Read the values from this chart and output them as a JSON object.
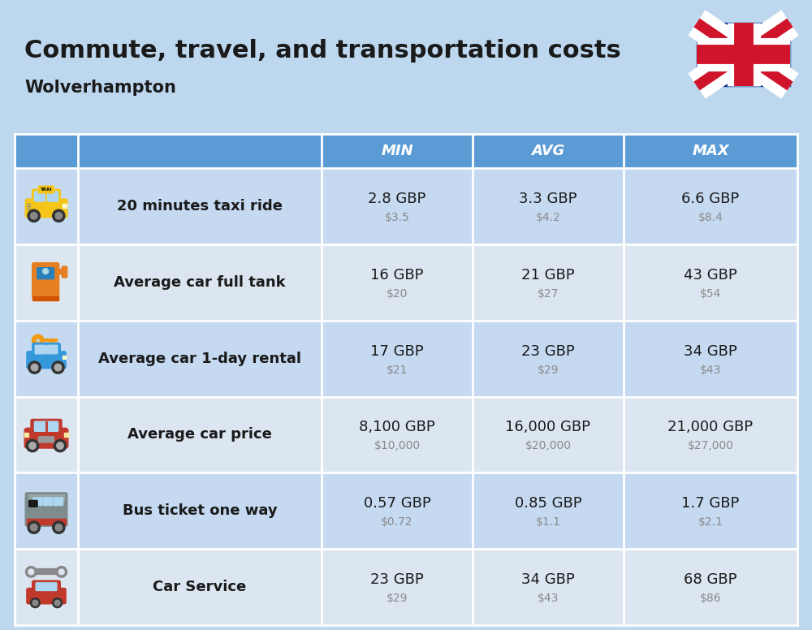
{
  "title": "Commute, travel, and transportation costs",
  "subtitle": "Wolverhampton",
  "bg_color": "#bdd7ee",
  "header_bg": "#5b9bd5",
  "header_text_color": "#ffffff",
  "row_bg_odd": "#c5d9f1",
  "row_bg_even": "#dce6f1",
  "col_header_labels": [
    "MIN",
    "AVG",
    "MAX"
  ],
  "rows": [
    {
      "label": "20 minutes taxi ride",
      "min_gbp": "2.8 GBP",
      "min_usd": "$3.5",
      "avg_gbp": "3.3 GBP",
      "avg_usd": "$4.2",
      "max_gbp": "6.6 GBP",
      "max_usd": "$8.4"
    },
    {
      "label": "Average car full tank",
      "min_gbp": "16 GBP",
      "min_usd": "$20",
      "avg_gbp": "21 GBP",
      "avg_usd": "$27",
      "max_gbp": "43 GBP",
      "max_usd": "$54"
    },
    {
      "label": "Average car 1-day rental",
      "min_gbp": "17 GBP",
      "min_usd": "$21",
      "avg_gbp": "23 GBP",
      "avg_usd": "$29",
      "max_gbp": "34 GBP",
      "max_usd": "$43"
    },
    {
      "label": "Average car price",
      "min_gbp": "8,100 GBP",
      "min_usd": "$10,000",
      "avg_gbp": "16,000 GBP",
      "avg_usd": "$20,000",
      "max_gbp": "21,000 GBP",
      "max_usd": "$27,000"
    },
    {
      "label": "Bus ticket one way",
      "min_gbp": "0.57 GBP",
      "min_usd": "$0.72",
      "avg_gbp": "0.85 GBP",
      "avg_usd": "$1.1",
      "max_gbp": "1.7 GBP",
      "max_usd": "$2.1"
    },
    {
      "label": "Car Service",
      "min_gbp": "23 GBP",
      "min_usd": "$29",
      "avg_gbp": "34 GBP",
      "avg_usd": "$43",
      "max_gbp": "68 GBP",
      "max_usd": "$86"
    }
  ]
}
